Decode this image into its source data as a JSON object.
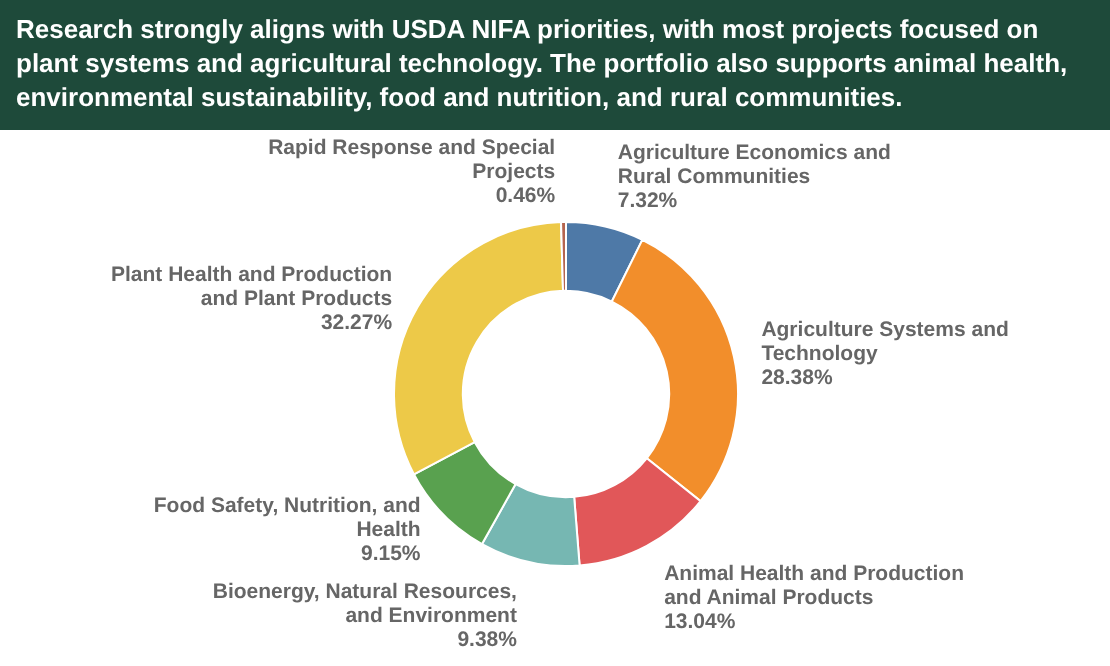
{
  "chart_data": {
    "type": "donut",
    "title": "Research strongly aligns with USDA NIFA priorities, with most projects focused on plant systems and agricultural technology. The portfolio also supports animal health, environmental sustainability, food and nutrition, and rural communities.",
    "categories": [
      "Agriculture Economics and Rural Communities",
      "Agriculture Systems and Technology",
      "Animal Health and Production and Animal Products",
      "Bioenergy, Natural Resources, and Environment",
      "Food Safety, Nutrition, and Health",
      "Plant Health and Production and Plant Products",
      "Rapid Response and Special Projects"
    ],
    "values": [
      7.32,
      28.38,
      13.04,
      9.38,
      9.15,
      32.27,
      0.46
    ],
    "value_labels": [
      "7.32%",
      "28.38%",
      "13.04%",
      "9.38%",
      "9.15%",
      "32.27%",
      "0.46%"
    ],
    "colors": [
      "#4e79a7",
      "#f28e2b",
      "#e15759",
      "#76b7b2",
      "#59a14f",
      "#edc948",
      "#b5654f"
    ]
  }
}
